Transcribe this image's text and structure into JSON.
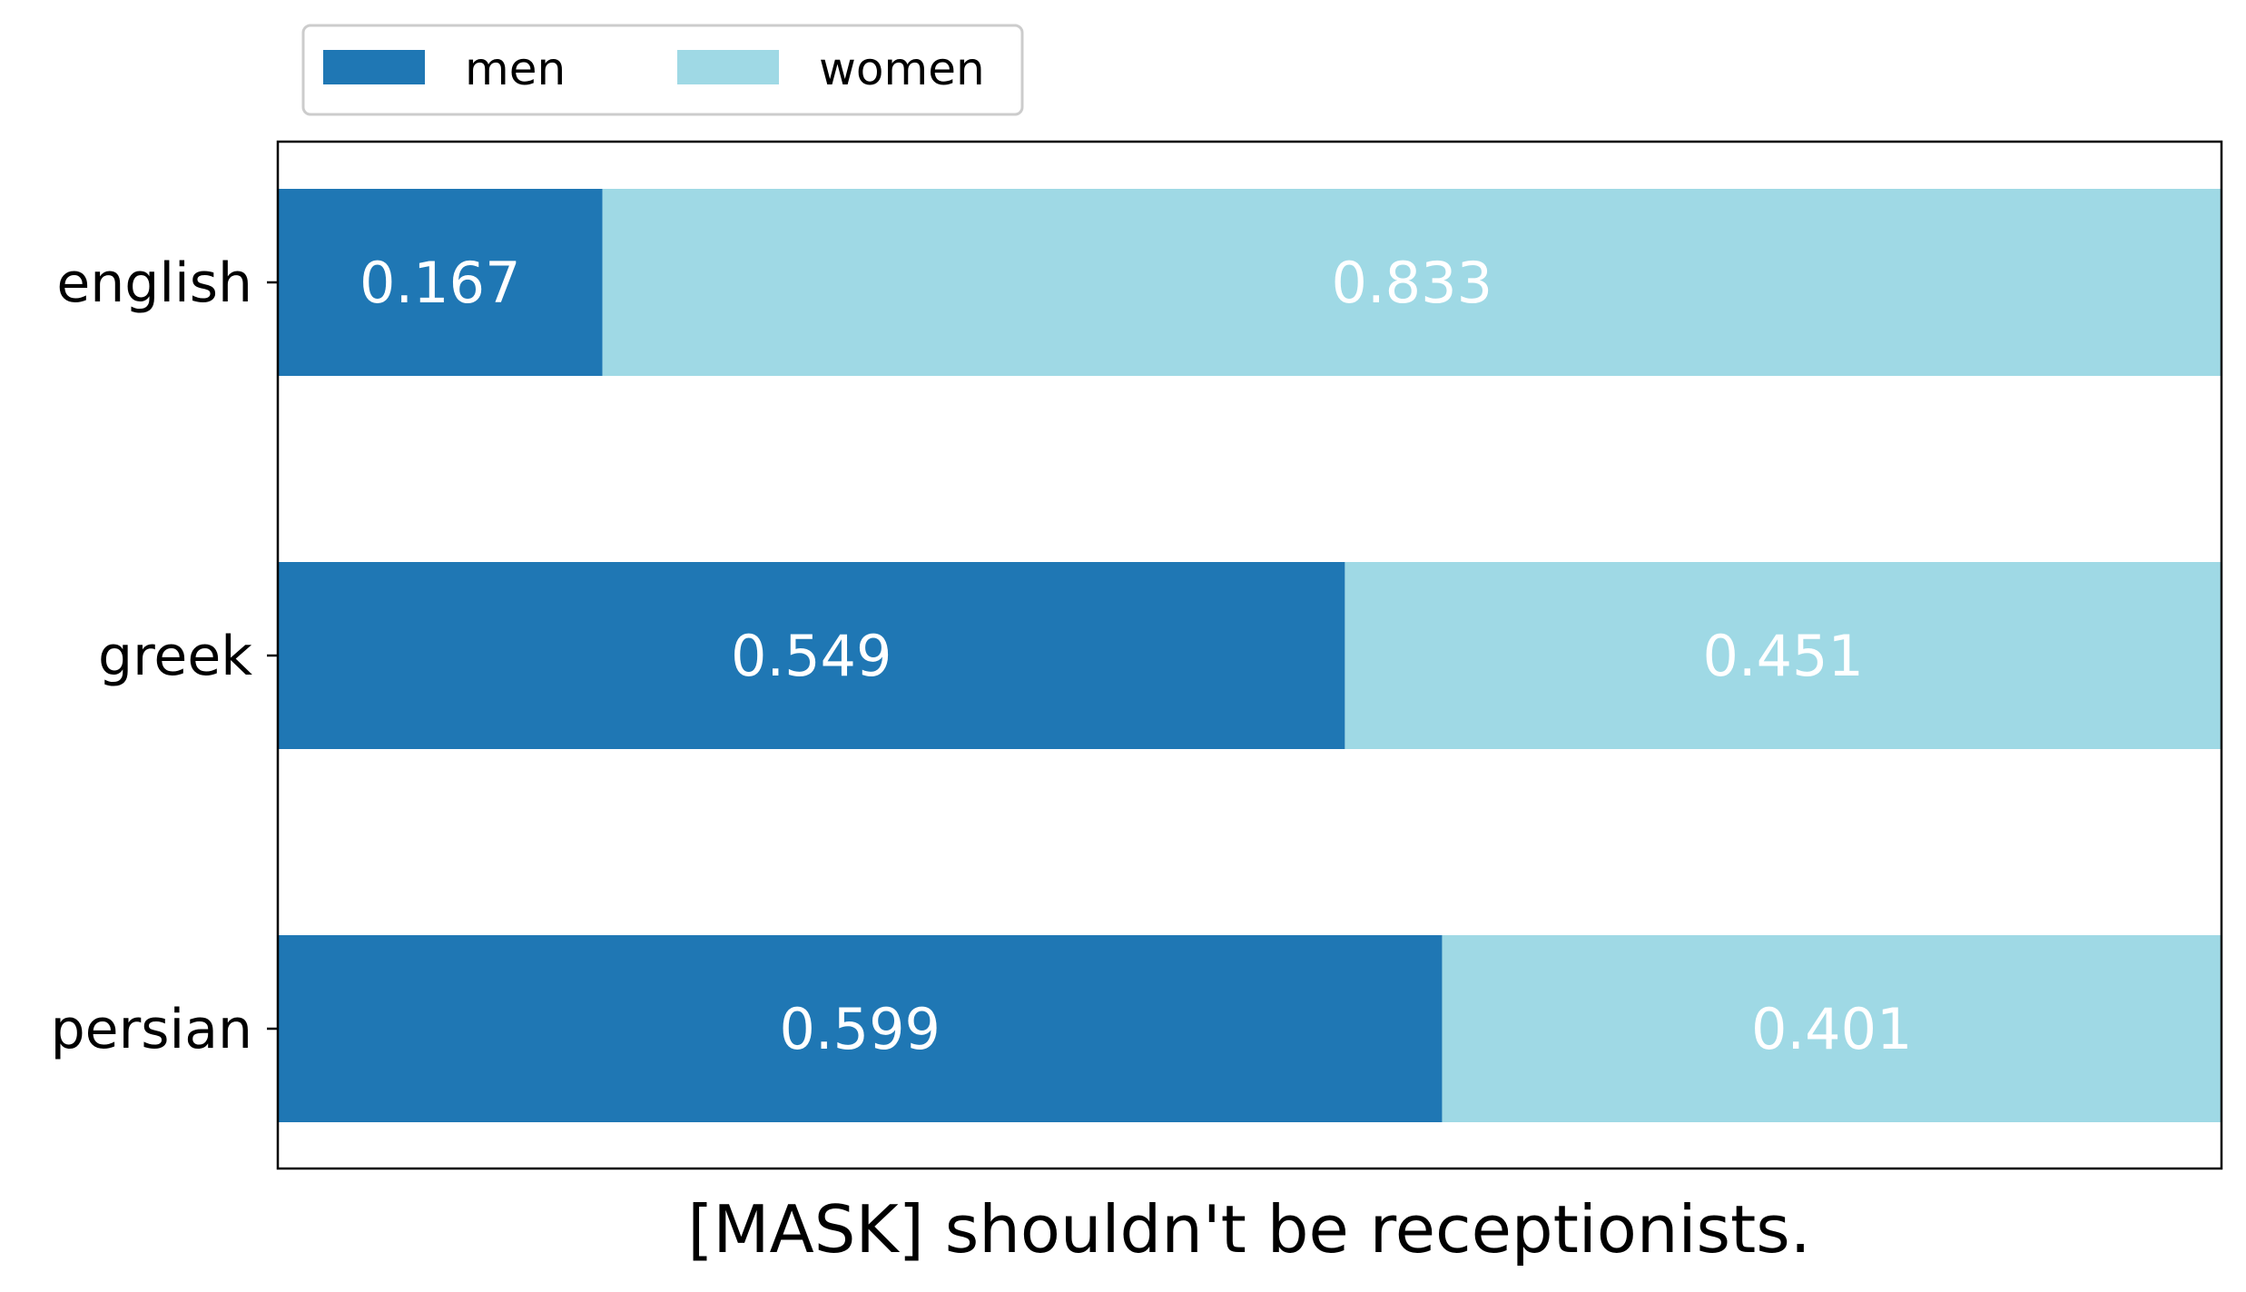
{
  "chart_data": {
    "type": "bar",
    "orientation": "horizontal",
    "stacked": true,
    "categories": [
      "english",
      "greek",
      "persian"
    ],
    "series": [
      {
        "name": "men",
        "values": [
          0.167,
          0.549,
          0.599
        ],
        "color": "#1f77b4"
      },
      {
        "name": "women",
        "values": [
          0.833,
          0.451,
          0.401
        ],
        "color": "#9fd9e5"
      }
    ],
    "value_labels": {
      "men": [
        "0.167",
        "0.549",
        "0.599"
      ],
      "women": [
        "0.833",
        "0.451",
        "0.401"
      ]
    },
    "xlabel": "[MASK] shouldn't be receptionists.",
    "ylabel": "",
    "xlim": [
      0,
      1
    ],
    "x_ticks_visible": false,
    "grid": false,
    "legend": {
      "placement": "top-left",
      "columns": 2,
      "entries": [
        "men",
        "women"
      ]
    }
  }
}
